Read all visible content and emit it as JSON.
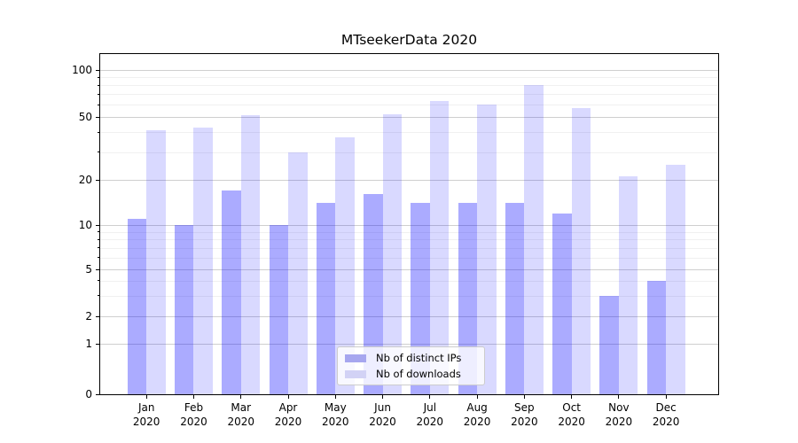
{
  "chart_data": {
    "type": "bar",
    "title": "MTseekerData 2020",
    "categories": [
      "Jan 2020",
      "Feb 2020",
      "Mar 2020",
      "Apr 2020",
      "May 2020",
      "Jun 2020",
      "Jul 2020",
      "Aug 2020",
      "Sep 2020",
      "Oct 2020",
      "Nov 2020",
      "Dec 2020"
    ],
    "series": [
      {
        "name": "Nb of distinct IPs",
        "bar_color": "rgba(0,0,255,0.33)",
        "swatch_color": "#a6a6ef",
        "values": [
          11,
          10,
          17,
          10,
          14,
          16,
          14,
          14,
          14,
          12,
          3,
          4
        ]
      },
      {
        "name": "Nb of downloads",
        "bar_color": "rgba(0,0,255,0.15)",
        "swatch_color": "#d2d2f5",
        "values": [
          41,
          43,
          51,
          30,
          37,
          52,
          63,
          60,
          80,
          57,
          21,
          25
        ]
      }
    ],
    "xlabel": "",
    "ylabel": "",
    "yscale": "symlog",
    "yticks": [
      0,
      1,
      2,
      5,
      10,
      20,
      50,
      100
    ],
    "yticks_minor": [
      3,
      4,
      6,
      7,
      8,
      9,
      30,
      40,
      60,
      70,
      80,
      90
    ],
    "ylim": [
      0,
      126
    ],
    "grid": true,
    "legend_position": "lower center"
  },
  "colors": {
    "grid_major": "rgba(0,0,0,0.19)",
    "grid_minor": "rgba(0,0,0,0.06)",
    "axis": "#000000",
    "legend_border": "#cccccc"
  }
}
